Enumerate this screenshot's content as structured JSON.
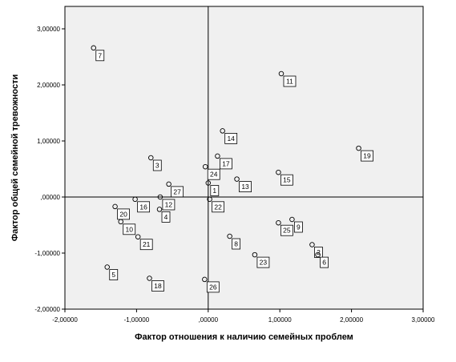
{
  "chart_data": {
    "type": "scatter",
    "title": "",
    "xlabel": "Фактор отношения к наличию семейных проблем",
    "ylabel": "Фактор общей семейной тревожности",
    "xlim": [
      -2.0,
      3.0
    ],
    "ylim": [
      -2.0,
      3.4
    ],
    "xticks": [
      -2,
      -1,
      0,
      1,
      2,
      3
    ],
    "yticks": [
      -2,
      -1,
      0,
      1,
      2,
      3
    ],
    "xtick_labels": [
      "-2,00000",
      "-1,00000",
      ",00000",
      "1,00000",
      "2,00000",
      "3,00000"
    ],
    "ytick_labels": [
      "-2,00000",
      "-1,00000",
      ",00000",
      "1,00000",
      "2,00000",
      "3,00000"
    ],
    "reference_lines": {
      "x": 0,
      "y": 0
    },
    "grid": false,
    "plot_background": "#f0f0f0",
    "points": [
      {
        "label": "1",
        "x": 0.0,
        "y": 0.25
      },
      {
        "label": "2",
        "x": 1.45,
        "y": -0.85
      },
      {
        "label": "3",
        "x": -0.8,
        "y": 0.7
      },
      {
        "label": "4",
        "x": -0.68,
        "y": -0.22
      },
      {
        "label": "5",
        "x": -1.41,
        "y": -1.25
      },
      {
        "label": "6",
        "x": 1.53,
        "y": -1.03
      },
      {
        "label": "7",
        "x": -1.6,
        "y": 2.66
      },
      {
        "label": "8",
        "x": 0.3,
        "y": -0.7
      },
      {
        "label": "9",
        "x": 1.17,
        "y": -0.4
      },
      {
        "label": "10",
        "x": -1.22,
        "y": -0.44
      },
      {
        "label": "11",
        "x": 1.02,
        "y": 2.2
      },
      {
        "label": "12",
        "x": -0.67,
        "y": 0.0
      },
      {
        "label": "13",
        "x": 0.4,
        "y": 0.32
      },
      {
        "label": "14",
        "x": 0.2,
        "y": 1.18
      },
      {
        "label": "15",
        "x": 0.98,
        "y": 0.44
      },
      {
        "label": "16",
        "x": -1.02,
        "y": -0.04
      },
      {
        "label": "17",
        "x": 0.13,
        "y": 0.73
      },
      {
        "label": "18",
        "x": -0.82,
        "y": -1.45
      },
      {
        "label": "19",
        "x": 2.1,
        "y": 0.87
      },
      {
        "label": "20",
        "x": -1.3,
        "y": -0.17
      },
      {
        "label": "21",
        "x": -0.98,
        "y": -0.71
      },
      {
        "label": "22",
        "x": 0.02,
        "y": -0.04
      },
      {
        "label": "23",
        "x": 0.65,
        "y": -1.03
      },
      {
        "label": "24",
        "x": -0.04,
        "y": 0.54
      },
      {
        "label": "25",
        "x": 0.98,
        "y": -0.46
      },
      {
        "label": "26",
        "x": -0.05,
        "y": -1.47
      },
      {
        "label": "27",
        "x": -0.55,
        "y": 0.23
      }
    ]
  }
}
